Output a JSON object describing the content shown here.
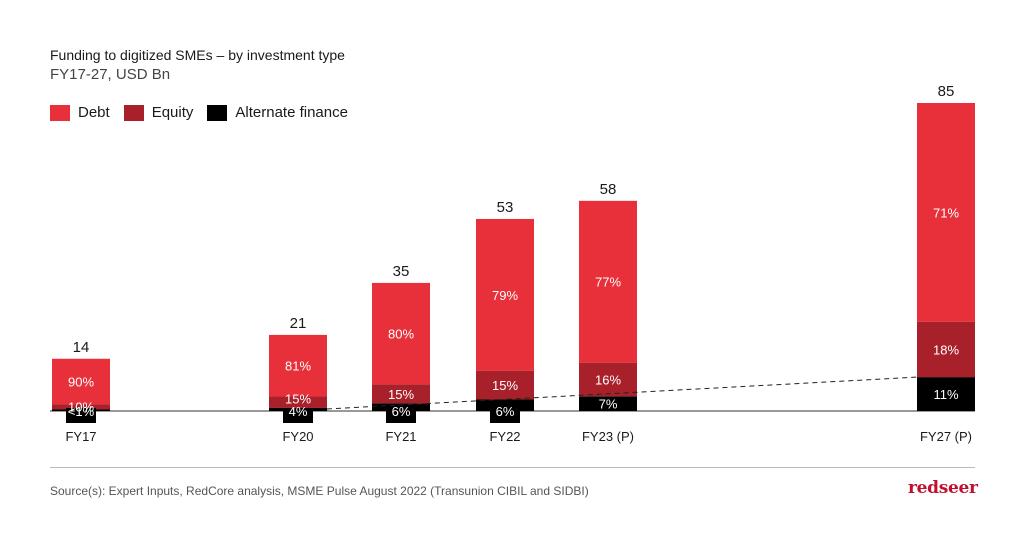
{
  "title": "Funding to digitized SMEs – by investment type",
  "subtitle": "FY17-27, USD Bn",
  "legend": [
    {
      "label": "Debt",
      "color": "#e8303b"
    },
    {
      "label": "Equity",
      "color": "#a8202a"
    },
    {
      "label": "Alternate finance",
      "color": "#000000"
    }
  ],
  "source": "Source(s): Expert Inputs, RedCore analysis, MSME Pulse August 2022 (Transunion CIBIL and SIDBI)",
  "logo": "redseer",
  "chart_data": {
    "type": "bar",
    "stacked": true,
    "title": "Funding to digitized SMEs – by investment type",
    "subtitle": "FY17-27, USD Bn",
    "categories": [
      "FY17",
      "FY20",
      "FY21",
      "FY22",
      "FY23 (P)",
      "FY27 (P)"
    ],
    "totals": [
      14,
      21,
      35,
      53,
      58,
      85
    ],
    "series": [
      {
        "name": "Alternate finance",
        "color": "#000000",
        "values": [
          0.14,
          0.84,
          2.1,
          3.18,
          4.06,
          9.35
        ],
        "labels": [
          "<1%",
          "4%",
          "6%",
          "6%",
          "7%",
          "11%"
        ]
      },
      {
        "name": "Equity",
        "color": "#a8202a",
        "values": [
          1.4,
          3.15,
          5.25,
          7.95,
          9.28,
          15.3
        ],
        "labels": [
          "10%",
          "15%",
          "15%",
          "15%",
          "16%",
          "18%"
        ]
      },
      {
        "name": "Debt",
        "color": "#e8303b",
        "values": [
          12.6,
          17.01,
          28.0,
          41.87,
          44.66,
          60.35
        ],
        "labels": [
          "90%",
          "81%",
          "80%",
          "79%",
          "77%",
          "71%"
        ]
      }
    ],
    "trend_line": "dashed line across alternate finance share",
    "ylim": [
      0,
      85
    ]
  }
}
